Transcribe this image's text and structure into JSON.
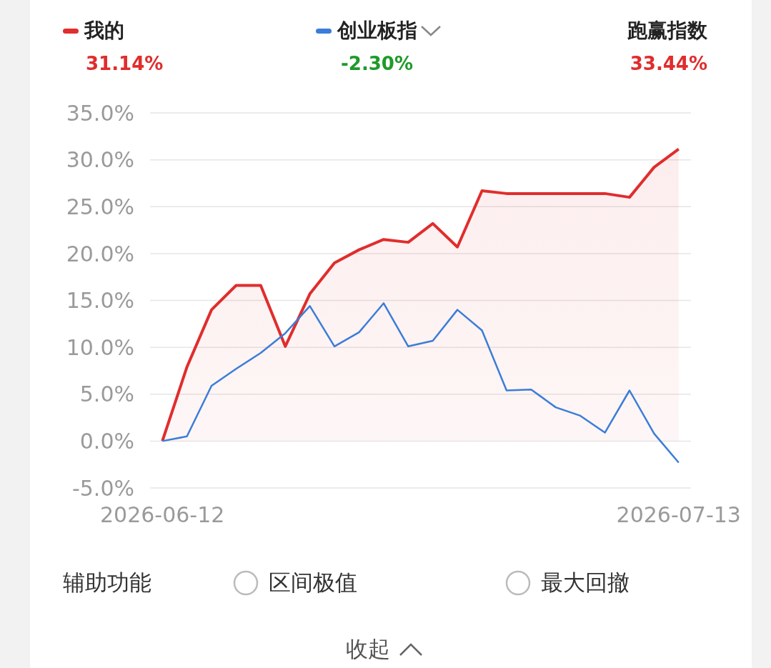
{
  "chart_data": {
    "type": "line",
    "categories": [
      "2026-06-12",
      null,
      null,
      null,
      null,
      null,
      null,
      null,
      null,
      null,
      null,
      null,
      null,
      null,
      null,
      null,
      null,
      null,
      null,
      null,
      null,
      "2026-07-13"
    ],
    "series": [
      {
        "name": "我的",
        "type": "area",
        "color": "#e02d2d",
        "values": [
          0,
          7.9,
          14.0,
          16.6,
          16.6,
          10.1,
          15.7,
          19.0,
          20.4,
          21.5,
          21.2,
          23.2,
          20.7,
          26.7,
          26.4,
          26.4,
          26.4,
          26.4,
          26.4,
          26.0,
          29.2,
          31.14
        ]
      },
      {
        "name": "创业板指",
        "color": "#3b7dd8",
        "values": [
          0,
          0.5,
          5.9,
          7.7,
          9.4,
          11.5,
          14.4,
          10.1,
          11.6,
          14.7,
          10.1,
          10.7,
          14.0,
          11.8,
          5.4,
          5.5,
          3.6,
          2.7,
          0.9,
          5.4,
          0.8,
          -2.3
        ]
      }
    ],
    "ylim": [
      -5,
      35
    ],
    "yticks": [
      {
        "value": -5,
        "label": "-5.0%"
      },
      {
        "value": 0,
        "label": "0.0%"
      },
      {
        "value": 5,
        "label": "5.0%"
      },
      {
        "value": 10,
        "label": "10.0%"
      },
      {
        "value": 15,
        "label": "15.0%"
      },
      {
        "value": 20,
        "label": "20.0%"
      },
      {
        "value": 25,
        "label": "25.0%"
      },
      {
        "value": 30,
        "label": "30.0%"
      },
      {
        "value": 35,
        "label": "35.0%"
      }
    ],
    "grid": "y",
    "legend": "top",
    "marker": "none",
    "annotations": [
      "31.14%",
      "-2.30%",
      "跑赢指数",
      "33.44%",
      "辅助功能",
      "区间极值",
      "最大回撤",
      "收起"
    ]
  }
}
